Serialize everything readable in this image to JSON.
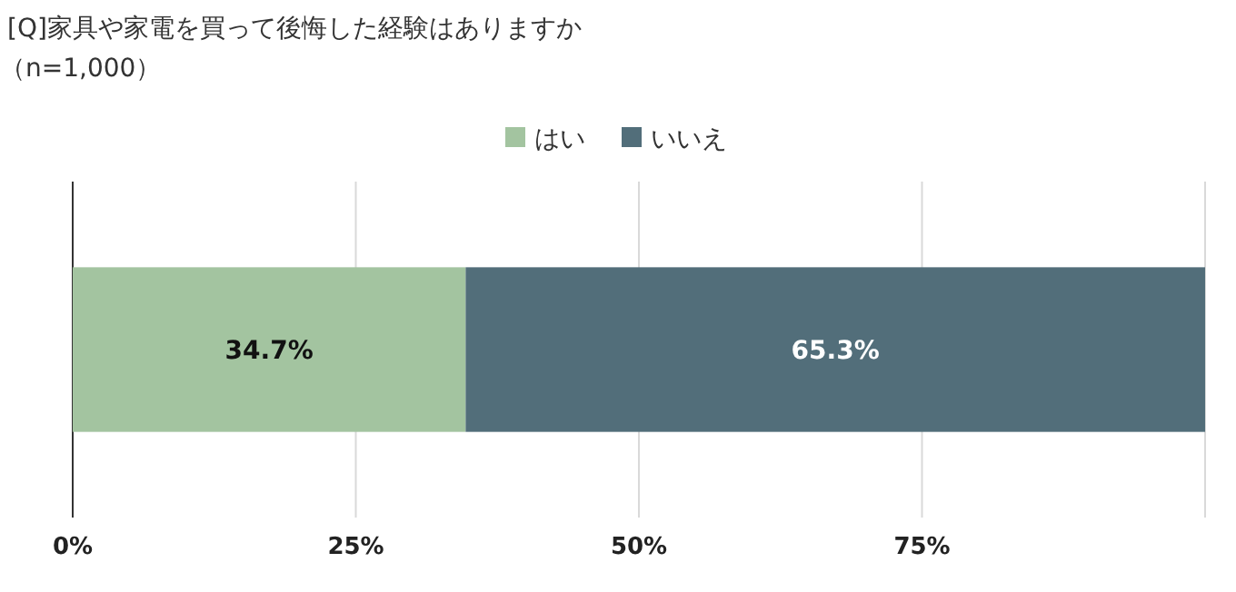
{
  "chart_data": {
    "type": "bar",
    "orientation": "horizontal",
    "stacked": true,
    "title": "[Q]家具や家電を買って後悔した経験はありますか",
    "subtitle": "（n=1,000）",
    "categories": [
      null
    ],
    "series": [
      {
        "name": "はい",
        "color": "#a3c4a0",
        "values": [
          34.7
        ],
        "value_labels": [
          "34.7%"
        ]
      },
      {
        "name": "いいえ",
        "color": "#526e7a",
        "values": [
          65.3
        ],
        "value_labels": [
          "65.3%"
        ]
      }
    ],
    "xlim": [
      0,
      100
    ],
    "xticks": [
      {
        "value": 0,
        "label": "0%"
      },
      {
        "value": 25,
        "label": "25%"
      },
      {
        "value": 50,
        "label": "50%"
      },
      {
        "value": 75,
        "label": "75%"
      },
      {
        "value": 100,
        "label": null
      }
    ],
    "grid": "x",
    "legend": "top"
  }
}
